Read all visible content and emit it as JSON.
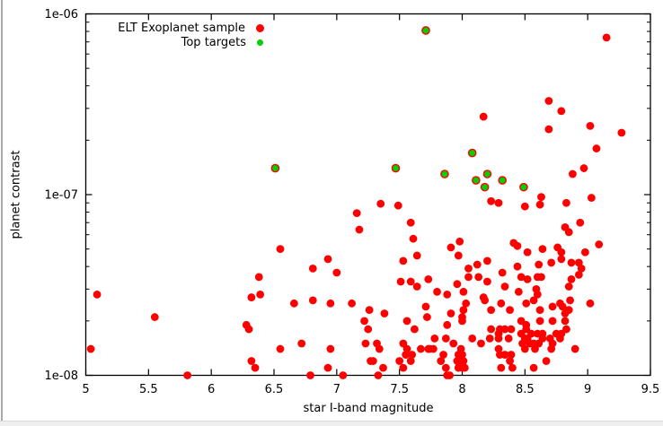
{
  "window": {
    "background": "#ffffff",
    "left_border_color": "#a9a9a9",
    "bottom_strip_color": "#efeff0"
  },
  "chart_data": {
    "type": "scatter",
    "title": "",
    "xlabel": "star I-band magnitude",
    "ylabel": "planet contrast",
    "x_scale": "linear",
    "y_scale": "log",
    "xlim": [
      5,
      9.5
    ],
    "ylim": [
      1e-08,
      1e-06
    ],
    "grid": false,
    "legend_position": "top-left-inside",
    "x_ticks": {
      "values": [
        5,
        5.5,
        6,
        6.5,
        7,
        7.5,
        8,
        8.5,
        9,
        9.5
      ],
      "labels": [
        "5",
        "5.5",
        "6",
        "6.5",
        "7",
        "7.5",
        "8",
        "8.5",
        "9",
        "9.5"
      ]
    },
    "y_ticks": {
      "values": [
        1e-08,
        1e-07,
        1e-06
      ],
      "labels": [
        "1e-08",
        "1e-07",
        "1e-06"
      ]
    },
    "y_minor_per_decade": [
      2,
      3,
      4,
      5,
      6,
      7,
      8,
      9
    ],
    "frame_color": "#000000",
    "series": [
      {
        "name": "ELT Exoplanet sample",
        "color": "#ff0000",
        "marker": "filled-circle",
        "points": [
          [
            5.09,
            2.8e-08
          ],
          [
            5.55,
            2.1e-08
          ],
          [
            5.04,
            1.4e-08
          ],
          [
            5.81,
            1e-08
          ],
          [
            6.28,
            1.9e-08
          ],
          [
            6.3,
            1.8e-08
          ],
          [
            6.32,
            2.7e-08
          ],
          [
            6.38,
            3.5e-08
          ],
          [
            6.39,
            2.8e-08
          ],
          [
            6.55,
            5e-08
          ],
          [
            6.55,
            1.4e-08
          ],
          [
            6.32,
            1.2e-08
          ],
          [
            6.35,
            1.1e-08
          ],
          [
            6.66,
            2.5e-08
          ],
          [
            6.72,
            1.5e-08
          ],
          [
            6.81,
            3.9e-08
          ],
          [
            6.81,
            2.6e-08
          ],
          [
            6.79,
            1e-08
          ],
          [
            6.93,
            4.4e-08
          ],
          [
            6.93,
            1.1e-08
          ],
          [
            6.95,
            2.5e-08
          ],
          [
            8.17,
            2.7e-07
          ],
          [
            8.69,
            3.3e-07
          ],
          [
            8.79,
            2.9e-07
          ],
          [
            8.69,
            2.3e-07
          ],
          [
            9.02,
            2.4e-07
          ],
          [
            9.27,
            2.2e-07
          ],
          [
            9.07,
            1.8e-07
          ],
          [
            8.88,
            1.3e-07
          ],
          [
            8.97,
            1.4e-07
          ],
          [
            9.03,
            9.6e-08
          ],
          [
            8.83,
            9e-08
          ],
          [
            8.63,
            9.7e-08
          ],
          [
            8.62,
            8.8e-08
          ],
          [
            8.5,
            8.6e-08
          ],
          [
            8.23,
            9.2e-08
          ],
          [
            8.29,
            9e-08
          ],
          [
            9.15,
            7.4e-07
          ],
          [
            7.35,
            8.9e-08
          ],
          [
            7.49,
            8.7e-08
          ],
          [
            7.16,
            7.9e-08
          ],
          [
            7.18,
            6.4e-08
          ],
          [
            7.59,
            7e-08
          ],
          [
            7.61,
            5.7e-08
          ],
          [
            7.64,
            4.6e-08
          ],
          [
            7.53,
            4.3e-08
          ],
          [
            7.0,
            3.7e-08
          ],
          [
            7.51,
            3.3e-08
          ],
          [
            7.59,
            3.3e-08
          ],
          [
            7.64,
            3.1e-08
          ],
          [
            7.73,
            3.4e-08
          ],
          [
            7.91,
            5.1e-08
          ],
          [
            7.98,
            5.5e-08
          ],
          [
            7.97,
            4.6e-08
          ],
          [
            8.05,
            3.9e-08
          ],
          [
            8.05,
            3.5e-08
          ],
          [
            8.12,
            4.1e-08
          ],
          [
            8.13,
            3.5e-08
          ],
          [
            8.2,
            4.3e-08
          ],
          [
            8.2,
            3.3e-08
          ],
          [
            7.8,
            2.9e-08
          ],
          [
            7.88,
            2.8e-08
          ],
          [
            7.96,
            3.2e-08
          ],
          [
            8.01,
            2.9e-08
          ],
          [
            8.03,
            2.5e-08
          ],
          [
            8.17,
            2.7e-08
          ],
          [
            8.18,
            2.6e-08
          ],
          [
            7.12,
            2.5e-08
          ],
          [
            7.26,
            2.3e-08
          ],
          [
            7.38,
            2.2e-08
          ],
          [
            7.71,
            2.4e-08
          ],
          [
            7.72,
            2.1e-08
          ],
          [
            7.91,
            2.2e-08
          ],
          [
            8.01,
            2.3e-08
          ],
          [
            8.23,
            2.3e-08
          ],
          [
            8.0,
            2.1e-08
          ],
          [
            8.94,
            7e-08
          ],
          [
            8.82,
            6.6e-08
          ],
          [
            8.85,
            6.2e-08
          ],
          [
            8.41,
            5.4e-08
          ],
          [
            8.44,
            5.2e-08
          ],
          [
            8.52,
            4.8e-08
          ],
          [
            8.64,
            5e-08
          ],
          [
            8.76,
            5.1e-08
          ],
          [
            8.79,
            4.8e-08
          ],
          [
            9.09,
            5.3e-08
          ],
          [
            8.98,
            4.8e-08
          ],
          [
            8.79,
            4.4e-08
          ],
          [
            8.71,
            4.2e-08
          ],
          [
            8.61,
            4.1e-08
          ],
          [
            8.44,
            4e-08
          ],
          [
            8.32,
            3.7e-08
          ],
          [
            8.87,
            4.2e-08
          ],
          [
            8.93,
            4.2e-08
          ],
          [
            8.95,
            3.9e-08
          ],
          [
            8.47,
            3.5e-08
          ],
          [
            8.52,
            3.4e-08
          ],
          [
            8.6,
            3.5e-08
          ],
          [
            8.63,
            3.5e-08
          ],
          [
            8.93,
            3.6e-08
          ],
          [
            8.87,
            3.4e-08
          ],
          [
            8.85,
            3.1e-08
          ],
          [
            8.34,
            3.1e-08
          ],
          [
            8.45,
            2.9e-08
          ],
          [
            8.59,
            3e-08
          ],
          [
            8.6,
            2.8e-08
          ],
          [
            8.57,
            2.6e-08
          ],
          [
            8.51,
            2.5e-08
          ],
          [
            8.31,
            2.5e-08
          ],
          [
            8.38,
            2.3e-08
          ],
          [
            8.62,
            2.3e-08
          ],
          [
            8.86,
            2.6e-08
          ],
          [
            8.78,
            2.5e-08
          ],
          [
            8.8,
            2.4e-08
          ],
          [
            8.85,
            2.3e-08
          ],
          [
            8.82,
            2.2e-08
          ],
          [
            8.72,
            2.4e-08
          ],
          [
            9.02,
            2.5e-08
          ],
          [
            7.22,
            2e-08
          ],
          [
            7.25,
            1.8e-08
          ],
          [
            7.56,
            2e-08
          ],
          [
            7.62,
            1.8e-08
          ],
          [
            7.88,
            1.9e-08
          ],
          [
            8.0,
            2e-08
          ],
          [
            8.23,
            1.8e-08
          ],
          [
            7.23,
            1.5e-08
          ],
          [
            7.32,
            1.5e-08
          ],
          [
            7.34,
            1.4e-08
          ],
          [
            7.27,
            1.2e-08
          ],
          [
            7.29,
            1.2e-08
          ],
          [
            7.37,
            1.1e-08
          ],
          [
            7.05,
            1e-08
          ],
          [
            7.33,
            1e-08
          ],
          [
            7.53,
            1.5e-08
          ],
          [
            7.55,
            1.3e-08
          ],
          [
            7.56,
            1.4e-08
          ],
          [
            7.78,
            1.6e-08
          ],
          [
            7.87,
            1.6e-08
          ],
          [
            7.93,
            1.5e-08
          ],
          [
            8.08,
            1.6e-08
          ],
          [
            8.15,
            1.5e-08
          ],
          [
            8.22,
            1.6e-08
          ],
          [
            7.67,
            1.4e-08
          ],
          [
            7.73,
            1.4e-08
          ],
          [
            7.74,
            1.4e-08
          ],
          [
            7.77,
            1.4e-08
          ],
          [
            7.99,
            1.4e-08
          ],
          [
            8.0,
            1.3e-08
          ],
          [
            7.97,
            1.3e-08
          ],
          [
            7.98,
            1.3e-08
          ],
          [
            8.01,
            1.2e-08
          ],
          [
            7.96,
            1.2e-08
          ],
          [
            7.99,
            1.2e-08
          ],
          [
            8.02,
            1.1e-08
          ],
          [
            7.97,
            1.1e-08
          ],
          [
            8.0,
            1.1e-08
          ],
          [
            7.83,
            1.2e-08
          ],
          [
            7.85,
            1.3e-08
          ],
          [
            7.87,
            1.1e-08
          ],
          [
            7.9,
            1e-08
          ],
          [
            7.88,
            1e-08
          ],
          [
            7.5,
            1.2e-08
          ],
          [
            7.53,
            1.1e-08
          ],
          [
            7.59,
            1.2e-08
          ],
          [
            7.6,
            1.3e-08
          ],
          [
            6.95,
            1.4e-08
          ],
          [
            8.47,
            2e-08
          ],
          [
            8.51,
            1.9e-08
          ],
          [
            8.62,
            2e-08
          ],
          [
            8.72,
            2e-08
          ],
          [
            8.82,
            2e-08
          ],
          [
            8.79,
            1.7e-08
          ],
          [
            8.75,
            1.7e-08
          ],
          [
            8.83,
            1.8e-08
          ],
          [
            8.34,
            1.8e-08
          ],
          [
            8.39,
            1.8e-08
          ],
          [
            8.3,
            1.8e-08
          ],
          [
            8.29,
            1.7e-08
          ],
          [
            8.37,
            1.6e-08
          ],
          [
            8.47,
            1.7e-08
          ],
          [
            8.51,
            1.8e-08
          ],
          [
            8.55,
            1.7e-08
          ],
          [
            8.6,
            1.7e-08
          ],
          [
            8.64,
            1.7e-08
          ],
          [
            8.5,
            1.6e-08
          ],
          [
            8.48,
            1.5e-08
          ],
          [
            8.52,
            1.6e-08
          ],
          [
            8.57,
            1.5e-08
          ],
          [
            8.54,
            1.5e-08
          ],
          [
            8.5,
            1.4e-08
          ],
          [
            8.58,
            1.4e-08
          ],
          [
            8.61,
            1.5e-08
          ],
          [
            8.64,
            1.6e-08
          ],
          [
            8.7,
            1.6e-08
          ],
          [
            8.72,
            1.5e-08
          ],
          [
            8.71,
            1.4e-08
          ],
          [
            8.78,
            1.6e-08
          ],
          [
            8.29,
            1.6e-08
          ],
          [
            8.29,
            1.4e-08
          ],
          [
            8.3,
            1.3e-08
          ],
          [
            8.34,
            1.3e-08
          ],
          [
            8.39,
            1.3e-08
          ],
          [
            8.38,
            1.2e-08
          ],
          [
            8.31,
            1.1e-08
          ],
          [
            8.4,
            1.1e-08
          ],
          [
            8.57,
            1.1e-08
          ],
          [
            8.67,
            1.2e-08
          ],
          [
            8.9,
            1.4e-08
          ]
        ]
      },
      {
        "name": "Top targets",
        "color": "#00d000",
        "marker": "green-circle-over-red",
        "points": [
          [
            7.71,
            8.1e-07
          ],
          [
            6.51,
            1.4e-07
          ],
          [
            7.47,
            1.4e-07
          ],
          [
            7.86,
            1.3e-07
          ],
          [
            8.08,
            1.7e-07
          ],
          [
            8.11,
            1.2e-07
          ],
          [
            8.2,
            1.3e-07
          ],
          [
            8.18,
            1.1e-07
          ],
          [
            8.32,
            1.2e-07
          ],
          [
            8.49,
            1.1e-07
          ]
        ]
      }
    ]
  }
}
